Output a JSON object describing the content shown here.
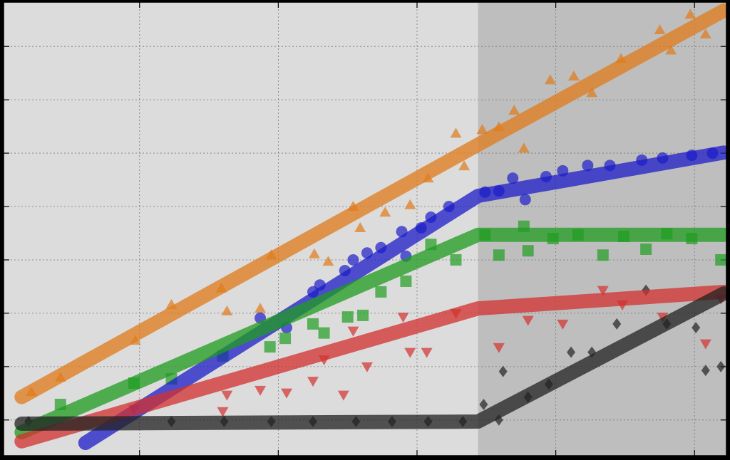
{
  "chart_data": {
    "type": "scatter",
    "xlim": [
      0.02,
      5.23
    ],
    "ylim": [
      -0.67,
      7.83
    ],
    "xticks": [
      1,
      2,
      3,
      4,
      5
    ],
    "yticks": [
      0,
      1,
      2,
      3,
      4,
      5,
      6,
      7
    ],
    "grid": true,
    "background": "#dcdcdc",
    "shaded_span": [
      3.44,
      5.23
    ],
    "shaded_color": "#bebebe",
    "series": [
      {
        "color": "#e07b1a",
        "marker": "triangle-up",
        "x": [
          0.22,
          0.43,
          0.97,
          1.23,
          1.59,
          1.63,
          1.87,
          1.95,
          2.26,
          2.36,
          2.54,
          2.59,
          2.77,
          2.95,
          3.08,
          3.28,
          3.34,
          3.47,
          3.59,
          3.7,
          3.77,
          3.96,
          4.13,
          4.26,
          4.47,
          4.75,
          4.83,
          4.97,
          5.08
        ],
        "y": [
          0.53,
          0.8,
          1.49,
          2.16,
          2.47,
          2.04,
          2.09,
          3.09,
          3.11,
          2.97,
          4.0,
          3.6,
          3.89,
          4.03,
          4.53,
          5.37,
          4.76,
          5.44,
          5.49,
          5.8,
          5.09,
          6.37,
          6.44,
          6.13,
          6.77,
          7.31,
          6.93,
          7.6,
          7.23
        ],
        "fit_x": [
          0.15,
          3.44,
          5.21
        ],
        "fit_y": [
          0.43,
          5.16,
          7.67
        ]
      },
      {
        "color": "#1c1cc8",
        "marker": "circle",
        "x": [
          1.87,
          2.06,
          2.25,
          2.3,
          2.48,
          2.54,
          2.64,
          2.74,
          2.89,
          2.92,
          3.03,
          3.1,
          3.23,
          3.49,
          3.59,
          3.69,
          3.78,
          3.93,
          4.05,
          4.23,
          4.39,
          4.62,
          4.77,
          4.98,
          5.13
        ],
        "y": [
          1.91,
          1.73,
          2.4,
          2.53,
          2.8,
          3.0,
          3.13,
          3.23,
          3.53,
          3.07,
          3.6,
          3.8,
          4.0,
          4.27,
          4.29,
          4.53,
          4.13,
          4.56,
          4.67,
          4.77,
          4.77,
          4.87,
          4.91,
          4.96,
          5.0
        ],
        "fit_x": [
          0.61,
          3.44,
          5.21
        ],
        "fit_y": [
          -0.43,
          4.2,
          5.01
        ]
      },
      {
        "color": "#1f9c1f",
        "marker": "square",
        "x": [
          0.43,
          0.96,
          1.23,
          1.6,
          1.94,
          2.05,
          2.25,
          2.33,
          2.5,
          2.61,
          2.74,
          2.92,
          3.1,
          3.28,
          3.49,
          3.59,
          3.77,
          3.8,
          3.98,
          4.16,
          4.34,
          4.49,
          4.65,
          4.8,
          4.98,
          5.19
        ],
        "y": [
          0.29,
          0.69,
          0.77,
          1.2,
          1.37,
          1.53,
          1.8,
          1.63,
          1.93,
          1.96,
          2.4,
          2.6,
          3.29,
          3.0,
          3.47,
          3.09,
          3.63,
          3.17,
          3.4,
          3.47,
          3.09,
          3.44,
          3.2,
          3.49,
          3.4,
          3.0
        ],
        "fit_x": [
          0.15,
          3.44,
          5.21
        ],
        "fit_y": [
          -0.23,
          3.47,
          3.47
        ]
      },
      {
        "color": "#d1302e",
        "marker": "triangle-down",
        "x": [
          0.96,
          1.6,
          1.63,
          1.87,
          2.06,
          2.25,
          2.33,
          2.47,
          2.54,
          2.64,
          2.9,
          2.95,
          3.07,
          3.28,
          3.59,
          3.8,
          4.05,
          4.34,
          4.48,
          4.77,
          5.08,
          5.19
        ],
        "y": [
          0.2,
          0.16,
          0.47,
          0.56,
          0.51,
          0.73,
          1.13,
          0.47,
          1.67,
          1.0,
          1.93,
          1.27,
          1.27,
          2.0,
          1.36,
          1.87,
          1.8,
          2.43,
          2.16,
          1.93,
          1.43,
          2.27
        ],
        "fit_x": [
          0.15,
          3.44,
          5.21
        ],
        "fit_y": [
          -0.4,
          2.09,
          2.4
        ]
      },
      {
        "color": "#222222",
        "marker": "diamond",
        "x": [
          0.2,
          1.23,
          1.61,
          1.95,
          2.25,
          2.56,
          2.82,
          3.08,
          3.33,
          3.48,
          3.59,
          3.62,
          3.8,
          3.95,
          4.11,
          4.26,
          4.44,
          4.65,
          4.8,
          5.01,
          5.08,
          5.19
        ],
        "y": [
          -0.03,
          -0.03,
          -0.03,
          -0.03,
          -0.03,
          -0.03,
          -0.03,
          -0.03,
          -0.03,
          0.29,
          0.0,
          0.91,
          0.43,
          0.67,
          1.27,
          1.27,
          1.8,
          2.43,
          1.8,
          1.73,
          0.93,
          1.0
        ],
        "fit_x": [
          0.15,
          3.44,
          5.21
        ],
        "fit_y": [
          -0.07,
          -0.03,
          2.37
        ]
      }
    ]
  }
}
